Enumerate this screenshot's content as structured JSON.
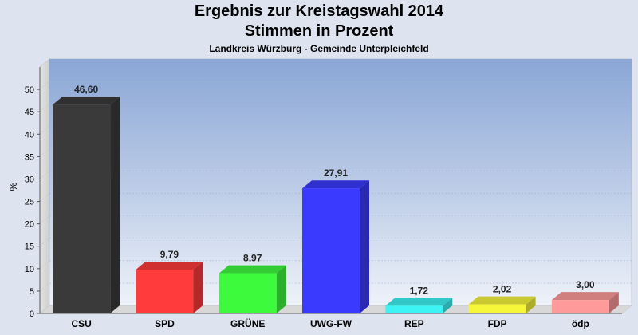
{
  "chart_data": {
    "type": "bar",
    "title": "Ergebnis zur Kreistagswahl 2014",
    "subtitle": "Stimmen in Prozent",
    "caption": "Landkreis Würzburg - Gemeinde Unterpleichfeld",
    "ylabel": "%",
    "xlabel": "",
    "ylim": [
      0,
      55
    ],
    "yticks": [
      "0",
      "5",
      "10",
      "15",
      "20",
      "25",
      "30",
      "35",
      "40",
      "45",
      "50"
    ],
    "grid": true,
    "categories": [
      "CSU",
      "SPD",
      "GRÜNE",
      "UWG-FW",
      "REP",
      "FDP",
      "ödp"
    ],
    "values": [
      46.6,
      9.79,
      8.97,
      27.91,
      1.72,
      2.02,
      3.0
    ],
    "value_labels": [
      "46,60",
      "9,79",
      "8,97",
      "27,91",
      "1,72",
      "2,02",
      "3,00"
    ],
    "colors": [
      "#3a3a3a",
      "#ff3b3b",
      "#3dfa3d",
      "#3a3aff",
      "#3df4f4",
      "#f6f63a",
      "#ff9a9a"
    ]
  }
}
